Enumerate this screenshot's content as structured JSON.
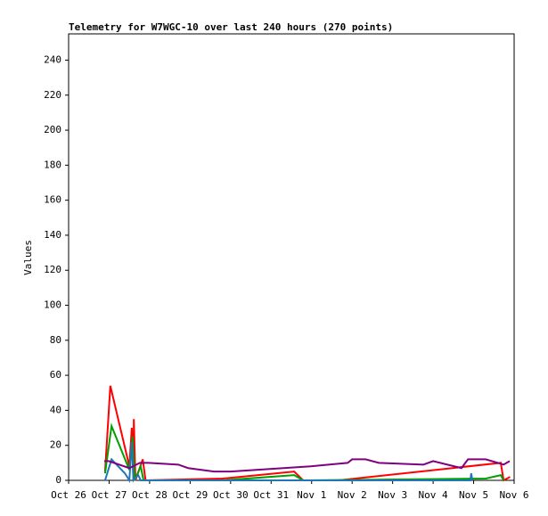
{
  "chart_data": {
    "type": "line",
    "title": "Telemetry for W7WGC-10 over last 240 hours (270 points)",
    "y_label": "Values",
    "xlim": [
      0,
      11
    ],
    "ylim": [
      0,
      255
    ],
    "xticks": [
      {
        "value": 0,
        "label": "Oct 26"
      },
      {
        "value": 1,
        "label": "Oct 27"
      },
      {
        "value": 2,
        "label": "Oct 28"
      },
      {
        "value": 3,
        "label": "Oct 29"
      },
      {
        "value": 4,
        "label": "Oct 30"
      },
      {
        "value": 5,
        "label": "Oct 31"
      },
      {
        "value": 6,
        "label": "Nov 1"
      },
      {
        "value": 7,
        "label": "Nov 2"
      },
      {
        "value": 8,
        "label": "Nov 3"
      },
      {
        "value": 9,
        "label": "Nov 4"
      },
      {
        "value": 10,
        "label": "Nov 5"
      },
      {
        "value": 11,
        "label": "Nov 6"
      }
    ],
    "yticks": [
      0,
      20,
      40,
      60,
      80,
      100,
      120,
      140,
      160,
      180,
      200,
      220,
      240
    ],
    "series": [
      {
        "color": "#ff0000",
        "x": [
          0.9,
          1.03,
          1.5,
          1.56,
          1.6,
          1.61,
          1.65,
          1.83,
          1.9,
          3.8,
          5.57,
          5.79,
          6.67,
          10.67,
          10.74,
          10.9
        ],
        "values": [
          5,
          54,
          8,
          30,
          0,
          35,
          0,
          12,
          0,
          1,
          5,
          0,
          0,
          10,
          0,
          2
        ]
      },
      {
        "color": "#00a000",
        "x": [
          0.9,
          1.06,
          1.5,
          1.58,
          1.63,
          1.78,
          1.85,
          3.8,
          5.57,
          5.79,
          10.3,
          10.67,
          10.74
        ],
        "values": [
          4,
          31,
          6,
          25,
          0,
          8,
          0,
          0,
          3,
          0,
          1,
          3,
          0
        ]
      },
      {
        "color": "#1f77b4",
        "x": [
          0.9,
          1.06,
          1.39,
          1.5,
          1.56,
          1.6,
          1.72,
          1.78,
          9.92,
          9.94,
          9.97
        ],
        "values": [
          0,
          12,
          4,
          0,
          22,
          0,
          3,
          0,
          0,
          4,
          0
        ]
      },
      {
        "color": "#800080",
        "x": [
          0.88,
          0.99,
          1.5,
          1.76,
          1.97,
          2.71,
          2.95,
          3.59,
          4.0,
          5.98,
          6.89,
          7.0,
          7.33,
          7.66,
          8.76,
          9.0,
          9.7,
          9.86,
          10.3,
          10.74,
          10.89
        ],
        "values": [
          11,
          11,
          7,
          10,
          10,
          9,
          7,
          5,
          5,
          8,
          10,
          12,
          12,
          10,
          9,
          11,
          7,
          12,
          12,
          9,
          11
        ]
      }
    ]
  }
}
